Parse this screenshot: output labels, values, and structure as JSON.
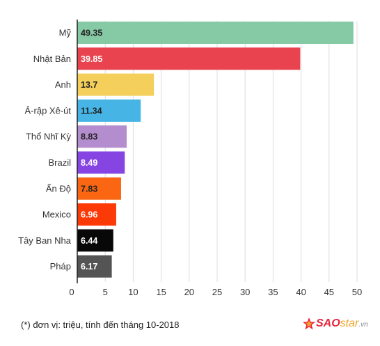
{
  "chart_data": {
    "type": "bar",
    "orientation": "horizontal",
    "categories": [
      "Mỹ",
      "Nhật Bản",
      "Anh",
      "Ả-rập Xê-út",
      "Thổ Nhĩ Kỳ",
      "Brazil",
      "Ấn Độ",
      "Mexico",
      "Tây Ban Nha",
      "Pháp"
    ],
    "values": [
      49.35,
      39.85,
      13.7,
      11.34,
      8.83,
      8.49,
      7.83,
      6.96,
      6.44,
      6.17
    ],
    "value_labels": [
      "49.35",
      "39.85",
      "13.7",
      "11.34",
      "8.83",
      "8.49",
      "7.83",
      "6.96",
      "6.44",
      "6.17"
    ],
    "colors": [
      "#86c9a5",
      "#e8434f",
      "#f4cf5c",
      "#46b5e5",
      "#b48dce",
      "#8645e3",
      "#fb6612",
      "#fb3a08",
      "#080808",
      "#545454"
    ],
    "label_colors": [
      "#222222",
      "#ffffff",
      "#222222",
      "#222222",
      "#222222",
      "#ffffff",
      "#222222",
      "#ffffff",
      "#ffffff",
      "#ffffff"
    ],
    "xlim": [
      0,
      50
    ],
    "xticks": [
      0,
      5,
      10,
      15,
      20,
      25,
      30,
      35,
      40,
      45,
      50
    ],
    "grid": true
  },
  "footnote": "(*) đơn vị: triệu, tính đến tháng 10-2018",
  "logo": {
    "sao": "SAO",
    "star": "star",
    "vn": ".vn"
  }
}
